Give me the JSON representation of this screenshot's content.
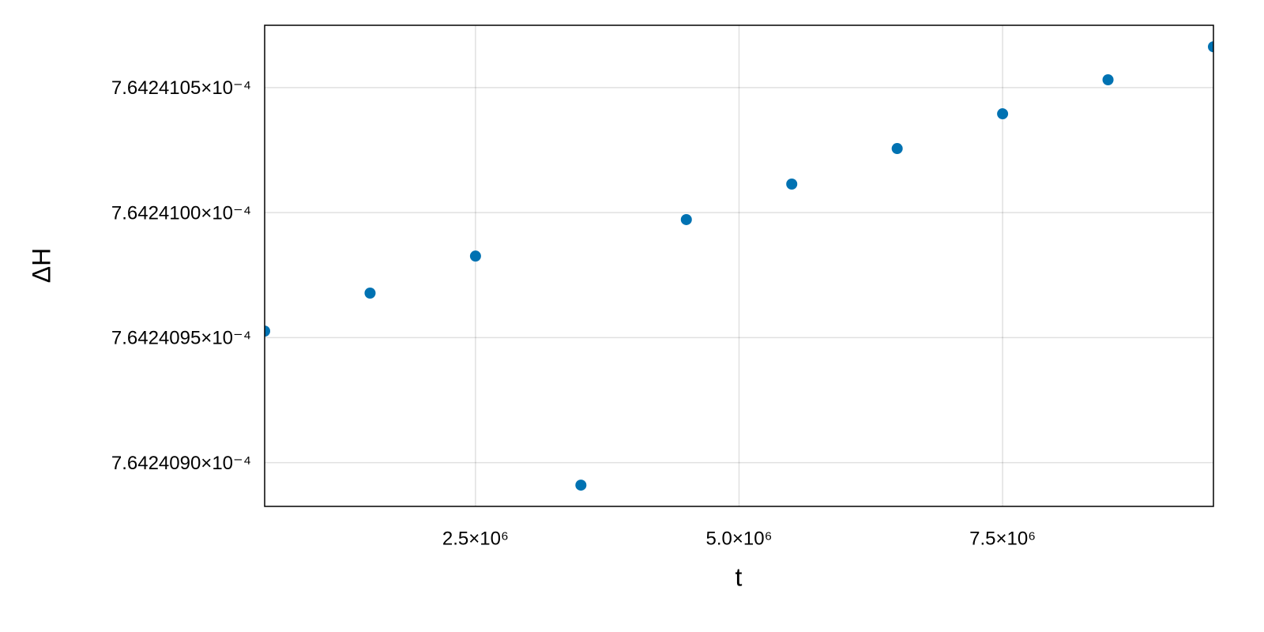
{
  "chart_data": {
    "type": "scatter",
    "x_label": "t",
    "y_label": "ΔH",
    "series": [
      {
        "color": "#0072b2",
        "x": [
          500000,
          1500000,
          2500000,
          3500000,
          4500000,
          5500000,
          6500000,
          7500000,
          8500000,
          9500000
        ],
        "values": [
          0.0007642409526,
          0.0007642409678,
          0.0007642409826,
          0.000764240891,
          0.0007642409972,
          0.0007642410114,
          0.0007642410256,
          0.0007642410395,
          0.0007642410531,
          0.0007642410663
        ]
      }
    ],
    "xlim": [
      500000,
      9500000
    ],
    "ylim": [
      0.0007642408825,
      0.0007642410749
    ],
    "xticks": [
      {
        "value": 2500000,
        "label": "2.5×10⁶"
      },
      {
        "value": 5000000,
        "label": "5.0×10⁶"
      },
      {
        "value": 7500000,
        "label": "7.5×10⁶"
      }
    ],
    "yticks": [
      {
        "value": 0.0007642409,
        "label": "7.6424090×10⁻⁴"
      },
      {
        "value": 0.00076424095,
        "label": "7.6424095×10⁻⁴"
      },
      {
        "value": 0.000764241,
        "label": "7.6424100×10⁻⁴"
      },
      {
        "value": 0.00076424105,
        "label": "7.6424105×10⁻⁴"
      }
    ],
    "grid": true
  }
}
